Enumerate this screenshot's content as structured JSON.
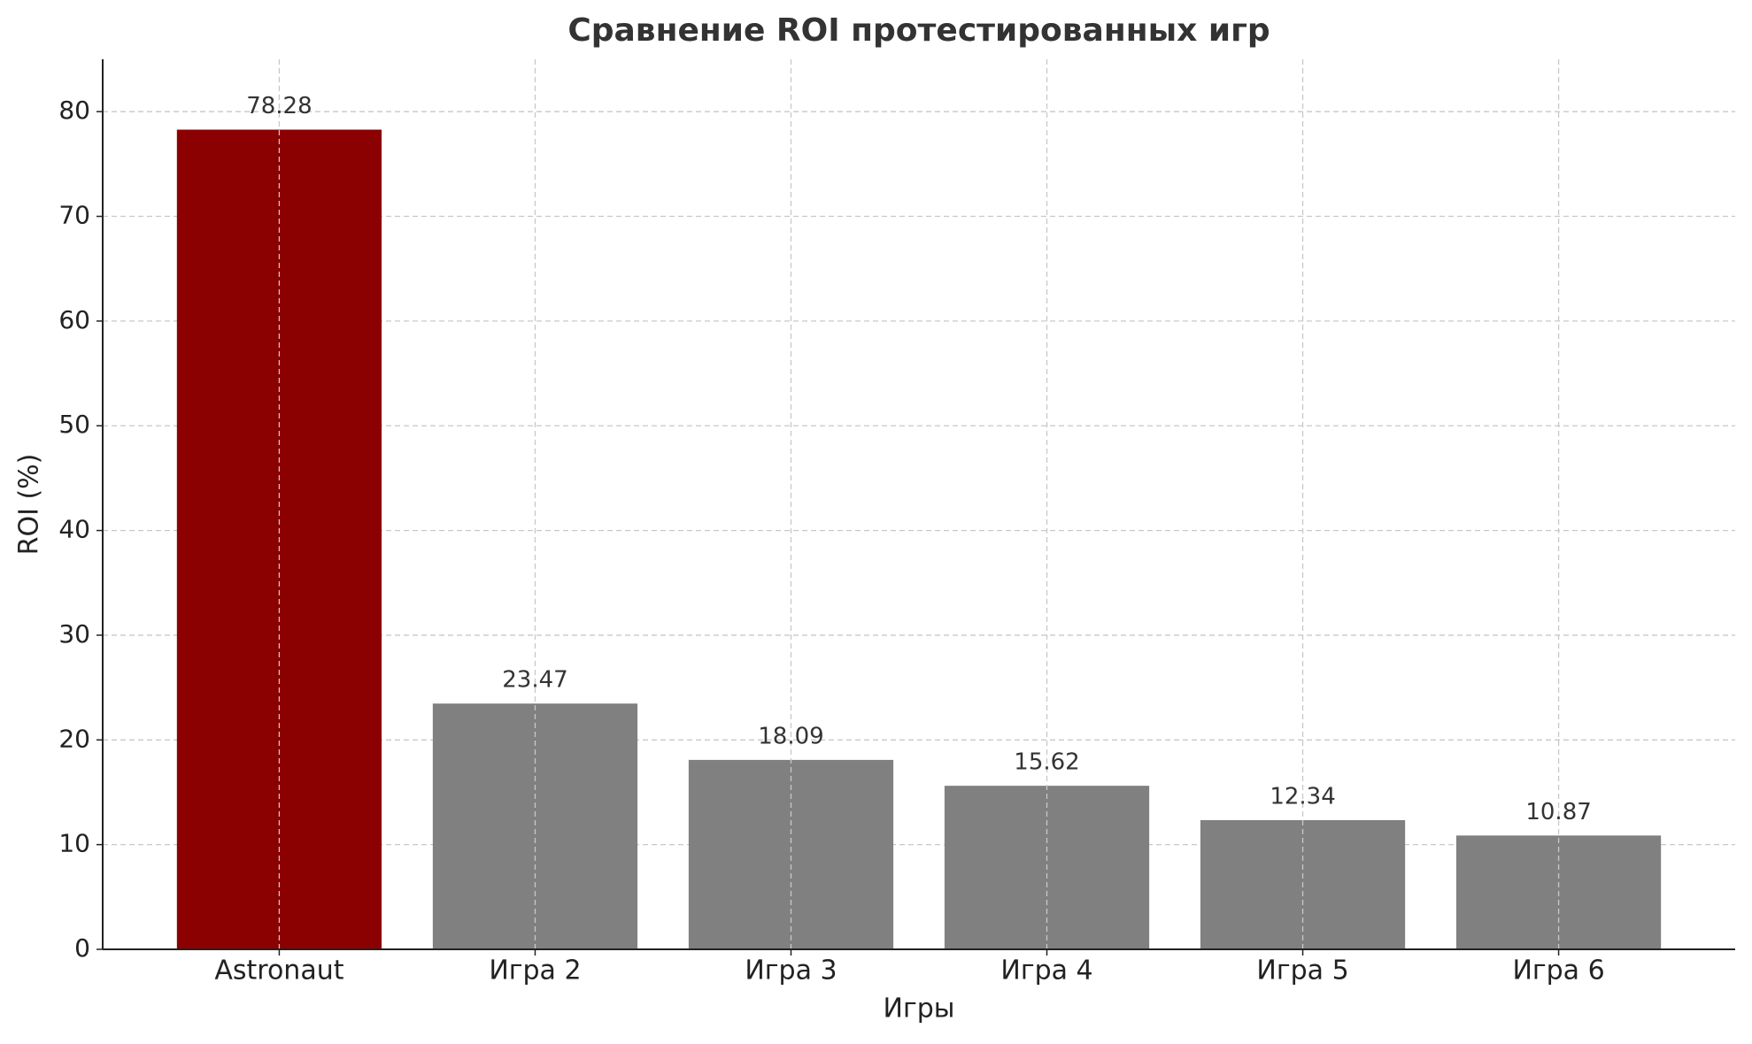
{
  "chart_data": {
    "type": "bar",
    "title": "Сравнение ROI протестированных игр",
    "x_label": "Игры",
    "y_label": "ROI (%)",
    "categories": [
      "Astronaut",
      "Игра 2",
      "Игра 3",
      "Игра 4",
      "Игра 5",
      "Игра 6"
    ],
    "values": [
      78.28,
      23.47,
      18.09,
      15.62,
      12.34,
      10.87
    ],
    "colors": [
      "#8b0000",
      "#808080",
      "#808080",
      "#808080",
      "#808080",
      "#808080"
    ],
    "ylim": [
      0,
      85
    ],
    "yticks": [
      0,
      10,
      20,
      30,
      40,
      50,
      60,
      70,
      80
    ],
    "grid": true
  }
}
